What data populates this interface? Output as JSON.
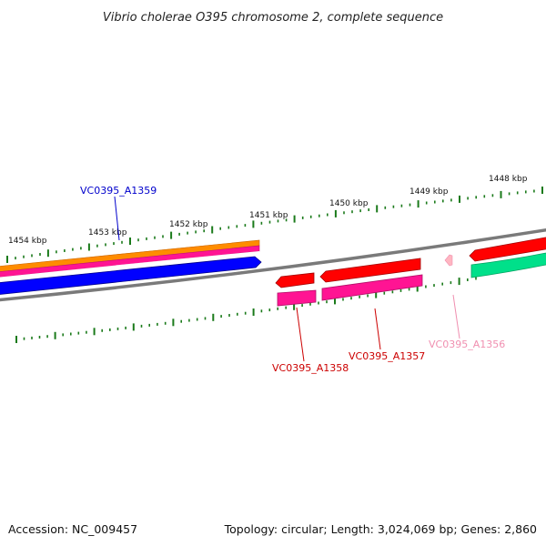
{
  "title": "Vibrio cholerae O395 chromosome 2, complete sequence",
  "footer": {
    "accession": "Accession: NC_009457",
    "summary": "Topology: circular; Length: 3,024,069 bp; Genes: 2,860"
  },
  "colors": {
    "backbone": "#808080",
    "tick": "#1a7a1a",
    "orange": "#ff8c00",
    "pink": "#ff1493",
    "blue": "#0000ff",
    "red": "#ff0000",
    "light_pink": "#ffb6c1",
    "aquamarine": "#00e08a"
  },
  "scale_labels": [
    "1454 kbp",
    "1453 kbp",
    "1452 kbp",
    "1451 kbp",
    "1450 kbp",
    "1449 kbp",
    "1448 kbp"
  ],
  "gene_labels": [
    {
      "id": "VC0395_A1359",
      "color": "#0000cc"
    },
    {
      "id": "VC0395_A1358",
      "color": "#cc0000"
    },
    {
      "id": "VC0395_A1357",
      "color": "#cc0000"
    },
    {
      "id": "VC0395_A1356",
      "color": "#f08fb0"
    }
  ]
}
